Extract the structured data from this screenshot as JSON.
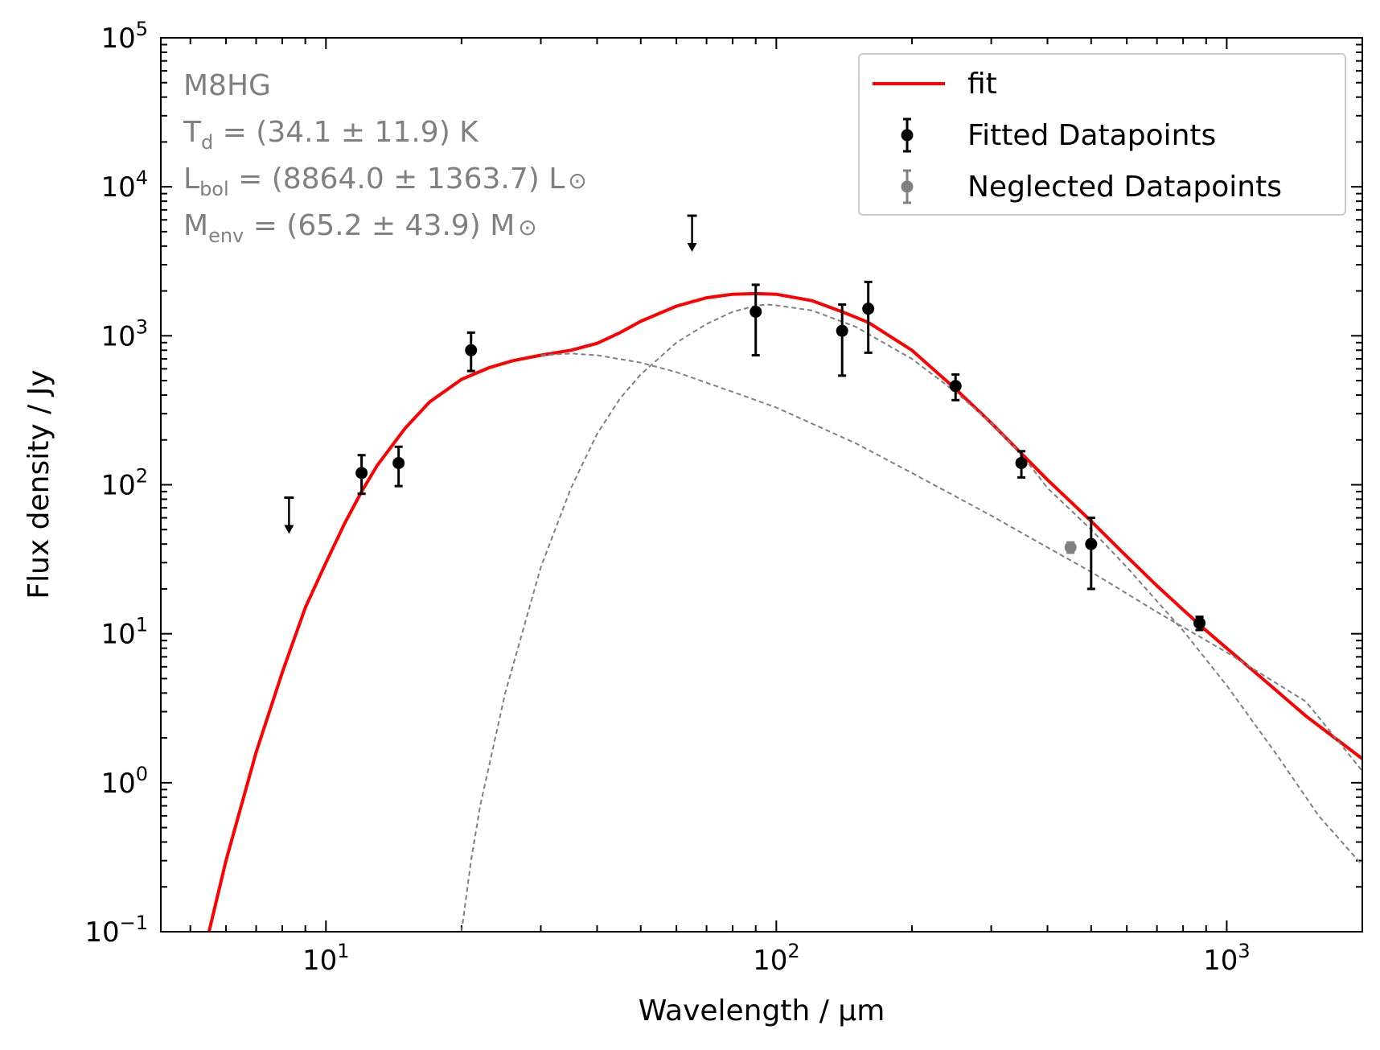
{
  "chart_data": {
    "type": "scatter",
    "title": "",
    "xlabel": "Wavelength / μm",
    "ylabel": "Flux density / Jy",
    "xscale": "log",
    "yscale": "log",
    "xlim": [
      4.3,
      2000
    ],
    "ylim": [
      0.1,
      100000
    ],
    "x_ticks": [
      {
        "value": 10,
        "base": "10",
        "exp": "1"
      },
      {
        "value": 100,
        "base": "10",
        "exp": "2"
      },
      {
        "value": 1000,
        "base": "10",
        "exp": "3"
      }
    ],
    "y_ticks": [
      {
        "value": 0.1,
        "base": "10",
        "exp": "−1"
      },
      {
        "value": 1,
        "base": "10",
        "exp": "0"
      },
      {
        "value": 10,
        "base": "10",
        "exp": "1"
      },
      {
        "value": 100,
        "base": "10",
        "exp": "2"
      },
      {
        "value": 1000,
        "base": "10",
        "exp": "3"
      },
      {
        "value": 10000,
        "base": "10",
        "exp": "4"
      },
      {
        "value": 100000,
        "base": "10",
        "exp": "5"
      }
    ],
    "source_name": "M8HG",
    "annotations": [
      {
        "name": "T",
        "sub": "d",
        "text": " = (34.1 ± 11.9) K"
      },
      {
        "name": "L",
        "sub": "bol",
        "text": " = (8864.0 ± 1363.7) L",
        "sun": "⊙"
      },
      {
        "name": "M",
        "sub": "env",
        "text": " = (65.2 ± 43.9) M",
        "sun": "⊙"
      }
    ],
    "legend": {
      "position": "top-right",
      "entries": [
        {
          "label": "fit",
          "color": "#ff0000",
          "kind": "line"
        },
        {
          "label": "Fitted Datapoints",
          "color": "#000000",
          "kind": "errorbar"
        },
        {
          "label": "Neglected Datapoints",
          "color": "#808080",
          "kind": "errorbar"
        }
      ]
    },
    "series": [
      {
        "name": "Fitted Datapoints",
        "color": "#000000",
        "points": [
          {
            "x": 12,
            "y": 120,
            "ylow": 87,
            "yhigh": 158
          },
          {
            "x": 14.5,
            "y": 140,
            "ylow": 98,
            "yhigh": 180
          },
          {
            "x": 21,
            "y": 800,
            "ylow": 580,
            "yhigh": 1050
          },
          {
            "x": 90,
            "y": 1450,
            "ylow": 740,
            "yhigh": 2200
          },
          {
            "x": 140,
            "y": 1080,
            "ylow": 540,
            "yhigh": 1620
          },
          {
            "x": 160,
            "y": 1520,
            "ylow": 770,
            "yhigh": 2300
          },
          {
            "x": 250,
            "y": 460,
            "ylow": 370,
            "yhigh": 550
          },
          {
            "x": 350,
            "y": 140,
            "ylow": 112,
            "yhigh": 168
          },
          {
            "x": 500,
            "y": 40,
            "ylow": 20,
            "yhigh": 60
          },
          {
            "x": 870,
            "y": 11.8,
            "ylow": 10.6,
            "yhigh": 13
          }
        ]
      },
      {
        "name": "Neglected Datapoints",
        "color": "#808080",
        "points": [
          {
            "x": 450,
            "y": 38,
            "ylow": 35,
            "yhigh": 41
          }
        ]
      },
      {
        "name": "Upper limits",
        "color": "#000000",
        "points": [
          {
            "x": 8.28,
            "y": 82
          },
          {
            "x": 65,
            "y": 6400
          }
        ]
      },
      {
        "name": "fit",
        "color": "#ff0000",
        "curve": [
          [
            5.5,
            0.1
          ],
          [
            6.0,
            0.3
          ],
          [
            7.0,
            1.6
          ],
          [
            8.0,
            5.5
          ],
          [
            9.0,
            15
          ],
          [
            10,
            30
          ],
          [
            11,
            55
          ],
          [
            12,
            90
          ],
          [
            13,
            135
          ],
          [
            15,
            240
          ],
          [
            17,
            360
          ],
          [
            20,
            510
          ],
          [
            23,
            610
          ],
          [
            26,
            680
          ],
          [
            30,
            740
          ],
          [
            35,
            800
          ],
          [
            40,
            890
          ],
          [
            45,
            1050
          ],
          [
            50,
            1250
          ],
          [
            60,
            1580
          ],
          [
            70,
            1800
          ],
          [
            80,
            1900
          ],
          [
            90,
            1920
          ],
          [
            100,
            1900
          ],
          [
            120,
            1720
          ],
          [
            140,
            1450
          ],
          [
            160,
            1230
          ],
          [
            200,
            800
          ],
          [
            250,
            440
          ],
          [
            300,
            260
          ],
          [
            350,
            162
          ],
          [
            400,
            108
          ],
          [
            500,
            57
          ],
          [
            600,
            33
          ],
          [
            700,
            21
          ],
          [
            800,
            14.5
          ],
          [
            900,
            10.5
          ],
          [
            1000,
            8.0
          ],
          [
            1200,
            5.0
          ],
          [
            1500,
            2.8
          ],
          [
            2000,
            1.45
          ]
        ]
      },
      {
        "name": "warm component",
        "color": "#808080",
        "curve": [
          [
            30,
            740
          ],
          [
            35,
            760
          ],
          [
            40,
            740
          ],
          [
            50,
            660
          ],
          [
            60,
            570
          ],
          [
            80,
            420
          ],
          [
            100,
            330
          ],
          [
            150,
            190
          ],
          [
            200,
            120
          ],
          [
            300,
            62
          ],
          [
            400,
            38
          ],
          [
            500,
            26
          ],
          [
            700,
            14
          ],
          [
            1000,
            7.5
          ],
          [
            1500,
            3.5
          ],
          [
            2000,
            1.2
          ]
        ]
      },
      {
        "name": "cold component",
        "color": "#808080",
        "curve": [
          [
            20,
            0.1
          ],
          [
            21,
            0.3
          ],
          [
            22,
            0.7
          ],
          [
            25,
            4
          ],
          [
            30,
            28
          ],
          [
            35,
            95
          ],
          [
            40,
            220
          ],
          [
            45,
            380
          ],
          [
            50,
            550
          ],
          [
            60,
            900
          ],
          [
            70,
            1200
          ],
          [
            80,
            1450
          ],
          [
            90,
            1590
          ],
          [
            95,
            1620
          ],
          [
            100,
            1600
          ],
          [
            120,
            1480
          ],
          [
            150,
            1150
          ],
          [
            200,
            700
          ],
          [
            250,
            420
          ],
          [
            300,
            260
          ],
          [
            350,
            160
          ],
          [
            400,
            95
          ],
          [
            500,
            50
          ],
          [
            600,
            28
          ],
          [
            800,
            10.5
          ],
          [
            1000,
            4.5
          ],
          [
            1300,
            1.5
          ],
          [
            1600,
            0.6
          ],
          [
            2000,
            0.28
          ]
        ]
      }
    ]
  }
}
